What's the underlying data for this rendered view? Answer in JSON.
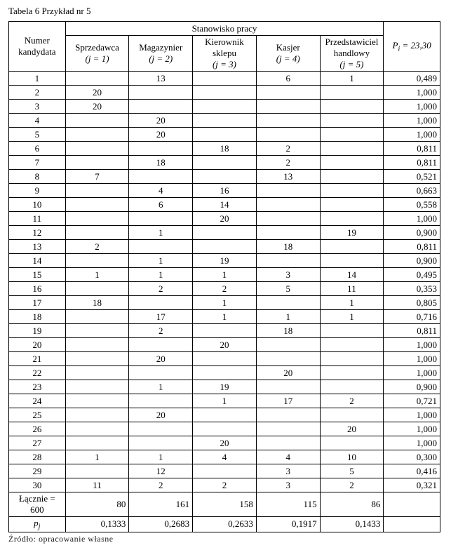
{
  "caption": "Tabela 6 Przykład nr 5",
  "footer": "Źródło: opracowanie własne",
  "header": {
    "numer_line1": "Numer",
    "numer_line2": "kandydata",
    "stanowisko": "Stanowisko pracy",
    "p_prefix": "P",
    "p_sub": "i",
    "p_eq": " = 23,30",
    "cols": [
      {
        "name": "Sprzedawca",
        "j": "(j = 1)"
      },
      {
        "name": "Magazynier",
        "j": "(j = 2)"
      },
      {
        "name_l1": "Kierownik",
        "name_l2": "sklepu",
        "j": "(j = 3)"
      },
      {
        "name": "Kasjer",
        "j": "(j = 4)"
      },
      {
        "name_l1": "Przedstawiciel",
        "name_l2": "handlowy",
        "j": "(j = 5)"
      }
    ]
  },
  "rows": [
    {
      "n": "1",
      "v": [
        "",
        "13",
        "",
        "6",
        "1"
      ],
      "p": "0,489"
    },
    {
      "n": "2",
      "v": [
        "20",
        "",
        "",
        "",
        ""
      ],
      "p": "1,000"
    },
    {
      "n": "3",
      "v": [
        "20",
        "",
        "",
        "",
        ""
      ],
      "p": "1,000"
    },
    {
      "n": "4",
      "v": [
        "",
        "20",
        "",
        "",
        ""
      ],
      "p": "1,000"
    },
    {
      "n": "5",
      "v": [
        "",
        "20",
        "",
        "",
        ""
      ],
      "p": "1,000"
    },
    {
      "n": "6",
      "v": [
        "",
        "",
        "18",
        "2",
        ""
      ],
      "p": "0,811"
    },
    {
      "n": "7",
      "v": [
        "",
        "18",
        "",
        "2",
        ""
      ],
      "p": "0,811"
    },
    {
      "n": "8",
      "v": [
        "7",
        "",
        "",
        "13",
        ""
      ],
      "p": "0,521"
    },
    {
      "n": "9",
      "v": [
        "",
        "4",
        "16",
        "",
        ""
      ],
      "p": "0,663"
    },
    {
      "n": "10",
      "v": [
        "",
        "6",
        "14",
        "",
        ""
      ],
      "p": "0,558"
    },
    {
      "n": "11",
      "v": [
        "",
        "",
        "20",
        "",
        ""
      ],
      "p": "1,000"
    },
    {
      "n": "12",
      "v": [
        "",
        "1",
        "",
        "",
        "19"
      ],
      "p": "0,900"
    },
    {
      "n": "13",
      "v": [
        "2",
        "",
        "",
        "18",
        ""
      ],
      "p": "0,811"
    },
    {
      "n": "14",
      "v": [
        "",
        "1",
        "19",
        "",
        ""
      ],
      "p": "0,900"
    },
    {
      "n": "15",
      "v": [
        "1",
        "1",
        "1",
        "3",
        "14"
      ],
      "p": "0,495"
    },
    {
      "n": "16",
      "v": [
        "",
        "2",
        "2",
        "5",
        "11"
      ],
      "p": "0,353"
    },
    {
      "n": "17",
      "v": [
        "18",
        "",
        "1",
        "",
        "1"
      ],
      "p": "0,805"
    },
    {
      "n": "18",
      "v": [
        "",
        "17",
        "1",
        "1",
        "1"
      ],
      "p": "0,716"
    },
    {
      "n": "19",
      "v": [
        "",
        "2",
        "",
        "18",
        ""
      ],
      "p": "0,811"
    },
    {
      "n": "20",
      "v": [
        "",
        "",
        "20",
        "",
        ""
      ],
      "p": "1,000"
    },
    {
      "n": "21",
      "v": [
        "",
        "20",
        "",
        "",
        ""
      ],
      "p": "1,000"
    },
    {
      "n": "22",
      "v": [
        "",
        "",
        "",
        "20",
        ""
      ],
      "p": "1,000"
    },
    {
      "n": "23",
      "v": [
        "",
        "1",
        "19",
        "",
        ""
      ],
      "p": "0,900"
    },
    {
      "n": "24",
      "v": [
        "",
        "",
        "1",
        "17",
        "2"
      ],
      "p": "0,721"
    },
    {
      "n": "25",
      "v": [
        "",
        "20",
        "",
        "",
        ""
      ],
      "p": "1,000"
    },
    {
      "n": "26",
      "v": [
        "",
        "",
        "",
        "",
        "20"
      ],
      "p": "1,000"
    },
    {
      "n": "27",
      "v": [
        "",
        "",
        "20",
        "",
        ""
      ],
      "p": "1,000"
    },
    {
      "n": "28",
      "v": [
        "1",
        "1",
        "4",
        "4",
        "10"
      ],
      "p": "0,300"
    },
    {
      "n": "29",
      "v": [
        "",
        "12",
        "",
        "3",
        "5"
      ],
      "p": "0,416"
    },
    {
      "n": "30",
      "v": [
        "11",
        "2",
        "2",
        "3",
        "2"
      ],
      "p": "0,321"
    }
  ],
  "totals": {
    "label": "Łącznie = 600",
    "v": [
      "80",
      "161",
      "158",
      "115",
      "86"
    ],
    "p": ""
  },
  "pj": {
    "label_prefix": "p",
    "label_sub": "j",
    "v": [
      "0,1333",
      "0,2683",
      "0,2633",
      "0,1917",
      "0,1433"
    ],
    "p": ""
  }
}
